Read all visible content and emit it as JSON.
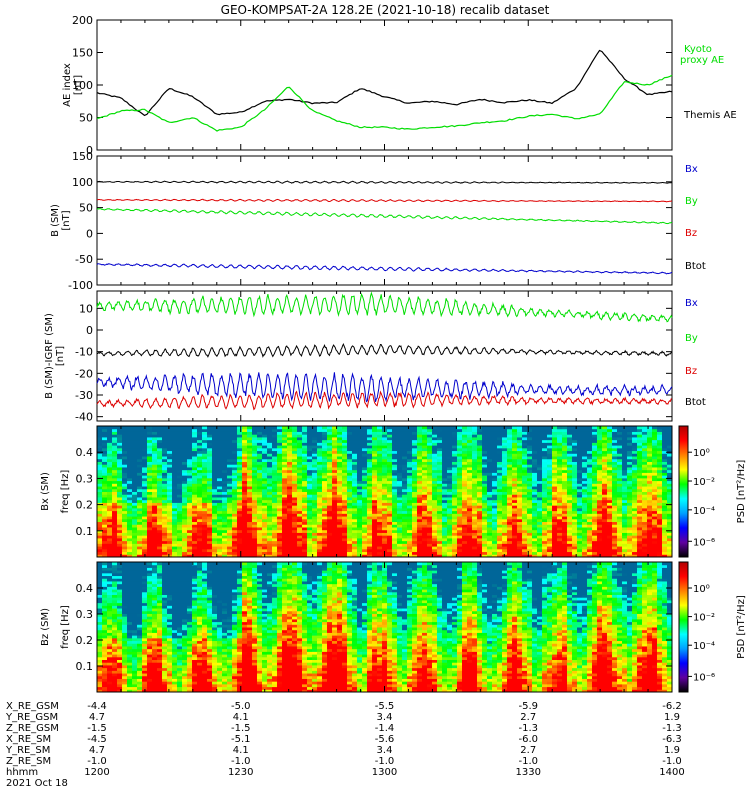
{
  "title": "GEO-KOMPSAT-2A 128.2E (2021-10-18) recalib dataset",
  "colors": {
    "black": "#000000",
    "green": "#00dd00",
    "red": "#dd0000",
    "blue": "#0000cc"
  },
  "chart_data": [
    {
      "type": "line",
      "panel": "ae",
      "ylabel": "AE index [nT]",
      "ylim": [
        0,
        200
      ],
      "yticks": [
        "0",
        "50",
        "100",
        "150",
        "200"
      ],
      "yticks_values": [
        0,
        50,
        100,
        150,
        200
      ],
      "x": [
        1200,
        1205,
        1210,
        1215,
        1220,
        1225,
        1230,
        1235,
        1240,
        1245,
        1250,
        1255,
        1300,
        1305,
        1310,
        1315,
        1320,
        1325,
        1330,
        1335,
        1340,
        1345,
        1350,
        1355,
        1400
      ],
      "series": [
        {
          "name": "Themis AE",
          "color": "#000000",
          "values": [
            88,
            80,
            52,
            95,
            82,
            55,
            58,
            75,
            78,
            72,
            73,
            95,
            82,
            72,
            75,
            70,
            78,
            73,
            77,
            72,
            95,
            155,
            110,
            85,
            90
          ]
        },
        {
          "name": "Kyoto proxy AE",
          "color": "#00dd00",
          "values": [
            48,
            60,
            62,
            42,
            50,
            30,
            35,
            62,
            98,
            60,
            45,
            35,
            35,
            32,
            35,
            37,
            42,
            45,
            52,
            55,
            48,
            55,
            105,
            100,
            115
          ]
        }
      ],
      "legend": [
        "Kyoto",
        "proxy AE",
        "Themis AE"
      ]
    },
    {
      "type": "line",
      "panel": "b_sm",
      "ylabel": "B (SM) [nT]",
      "ylim": [
        -100,
        150
      ],
      "yticks": [
        "-100",
        "-50",
        "0",
        "50",
        "100",
        "150"
      ],
      "yticks_values": [
        -100,
        -50,
        0,
        50,
        100,
        150
      ],
      "series": [
        {
          "name": "Bx",
          "color": "#000000",
          "start": 100,
          "end": 98,
          "wiggle": 1.5
        },
        {
          "name": "By",
          "color": "#dd0000",
          "start": 65,
          "end": 62,
          "wiggle": 1.5
        },
        {
          "name": "Bz",
          "color": "#00dd00",
          "start": 47,
          "end": 20,
          "wiggle": 2.5
        },
        {
          "name": "Btot",
          "color": "#0000cc",
          "start": -60,
          "end": -77,
          "wiggle": 3
        }
      ],
      "legend": [
        "Bx",
        "By",
        "Bz",
        "Btot"
      ]
    },
    {
      "type": "line",
      "panel": "b_minus_igrf",
      "ylabel": "B (SM)-IGRF (SM) [nT]",
      "ylim": [
        -42,
        18
      ],
      "yticks": [
        "-40",
        "-30",
        "-20",
        "-10",
        "0",
        "10"
      ],
      "yticks_values": [
        -40,
        -30,
        -20,
        -10,
        0,
        10
      ],
      "series": [
        {
          "name": "By",
          "color": "#00dd00",
          "start": 11,
          "mid": 12,
          "end": 5,
          "wiggle": 4
        },
        {
          "name": "Bx",
          "color": "#000000",
          "start": -11,
          "mid": -9,
          "end": -11,
          "wiggle": 2
        },
        {
          "name": "Btot",
          "color": "#0000cc",
          "start": -24,
          "mid": -27,
          "end": -28,
          "wiggle": 5
        },
        {
          "name": "Bz",
          "color": "#dd0000",
          "start": -34,
          "mid": -32,
          "end": -33,
          "wiggle": 3
        }
      ],
      "legend": [
        "Bx",
        "By",
        "Bz",
        "Btot"
      ]
    },
    {
      "type": "heatmap",
      "panel": "spec_bx",
      "ylabel": "Bx (SM) freq [Hz]",
      "ylim": [
        0,
        0.5
      ],
      "yticks": [
        "0.1",
        "0.2",
        "0.3",
        "0.4"
      ],
      "yticks_values": [
        0.1,
        0.2,
        0.3,
        0.4
      ],
      "colorbar_label": "PSD [nT²/Hz]",
      "colorbar_ticks": [
        "10⁰",
        "10⁻²",
        "10⁻⁴",
        "10⁻⁶"
      ]
    },
    {
      "type": "heatmap",
      "panel": "spec_bz",
      "ylabel": "Bz (SM) freq [Hz]",
      "ylim": [
        0,
        0.5
      ],
      "yticks": [
        "0.1",
        "0.2",
        "0.3",
        "0.4"
      ],
      "yticks_values": [
        0.1,
        0.2,
        0.3,
        0.4
      ],
      "colorbar_label": "PSD [nT²/Hz]",
      "colorbar_ticks": [
        "10⁰",
        "10⁻²",
        "10⁻⁴",
        "10⁻⁶"
      ]
    }
  ],
  "ephemeris": {
    "row_labels": [
      "X_RE_GSM",
      "Y_RE_GSM",
      "Z_RE_GSM",
      "X_RE_SM",
      "Y_RE_SM",
      "Z_RE_SM",
      "hhmm",
      "2021 Oct 18"
    ],
    "columns": [
      [
        "-4.4",
        "4.7",
        "-1.5",
        "-4.5",
        "4.7",
        "-1.0",
        "1200"
      ],
      [
        "-5.0",
        "4.1",
        "-1.5",
        "-5.1",
        "4.1",
        "-1.0",
        "1230"
      ],
      [
        "-5.5",
        "3.4",
        "-1.4",
        "-5.6",
        "3.4",
        "-1.0",
        "1300"
      ],
      [
        "-5.9",
        "2.7",
        "-1.3",
        "-6.0",
        "2.7",
        "-1.0",
        "1330"
      ],
      [
        "-6.2",
        "1.9",
        "-1.3",
        "-6.3",
        "1.9",
        "-1.0",
        "1400"
      ]
    ]
  }
}
